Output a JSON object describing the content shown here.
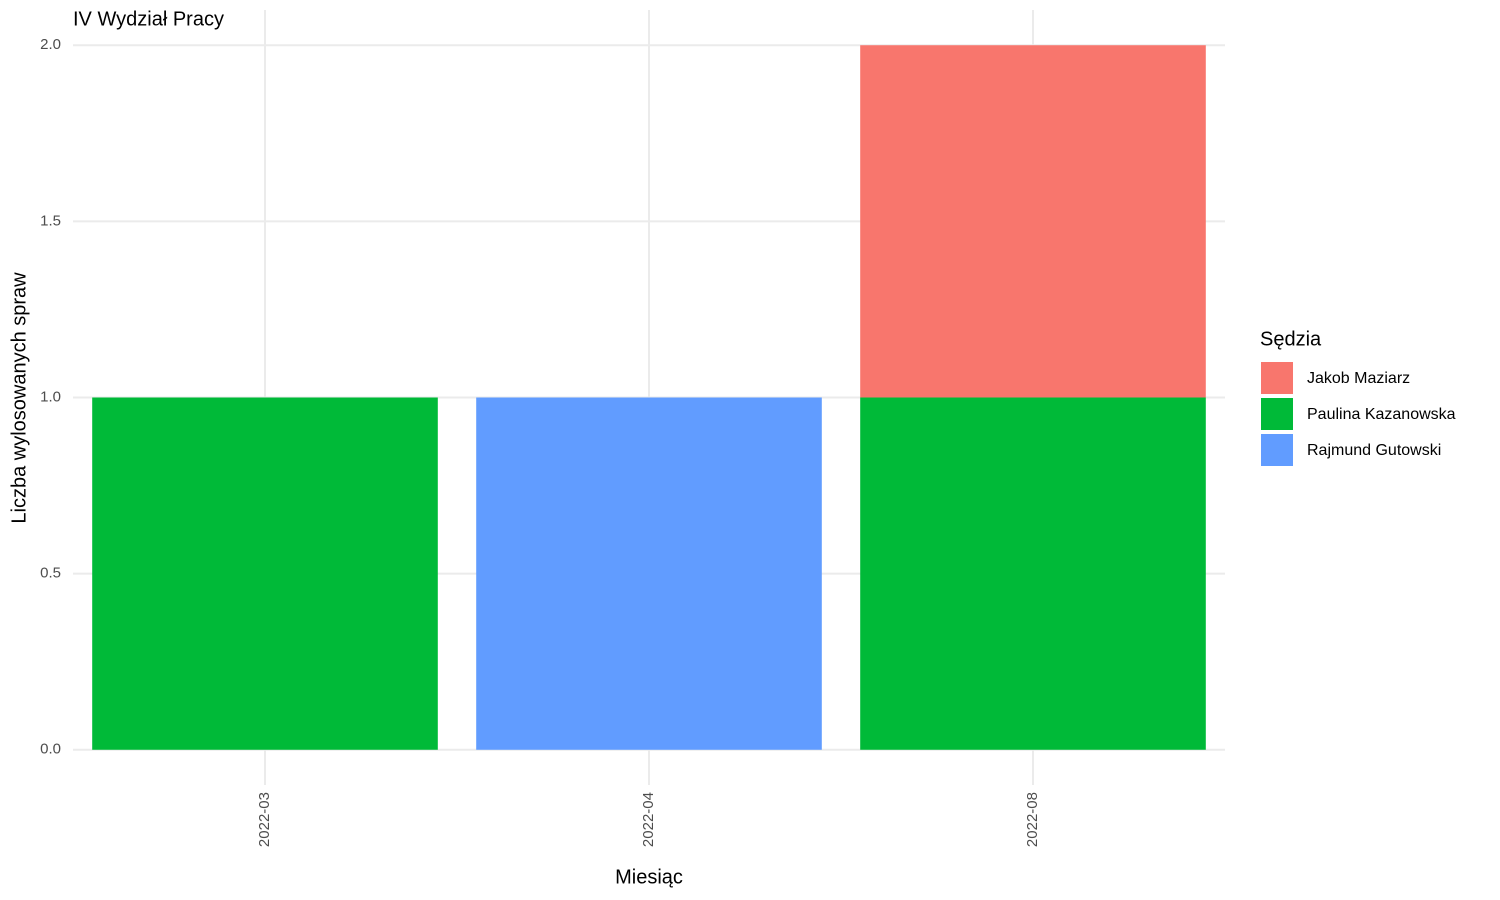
{
  "chart_data": {
    "type": "stacked_bar",
    "title": "IV Wydział Pracy",
    "x_label": "Miesiąc",
    "y_label": "Liczba wylosowanych spraw",
    "legend_title": "Sędzia",
    "categories": [
      "2022-03",
      "2022-04",
      "2022-08"
    ],
    "series": [
      {
        "name": "Jakob Maziarz",
        "color": "#f8766d",
        "values": [
          0,
          0,
          1
        ]
      },
      {
        "name": "Paulina Kazanowska",
        "color": "#00ba38",
        "values": [
          1,
          0,
          1
        ]
      },
      {
        "name": "Rajmund Gutowski",
        "color": "#619cff",
        "values": [
          0,
          1,
          0
        ]
      }
    ],
    "ylim": [
      -0.1,
      2.1
    ],
    "yticks": [
      {
        "value": 0,
        "label": "0.0"
      },
      {
        "value": 0.5,
        "label": "0.5"
      },
      {
        "value": 1,
        "label": "1.0"
      },
      {
        "value": 1.5,
        "label": "1.5"
      },
      {
        "value": 2,
        "label": "2.0"
      }
    ],
    "grid": true,
    "legend_position": "right"
  }
}
